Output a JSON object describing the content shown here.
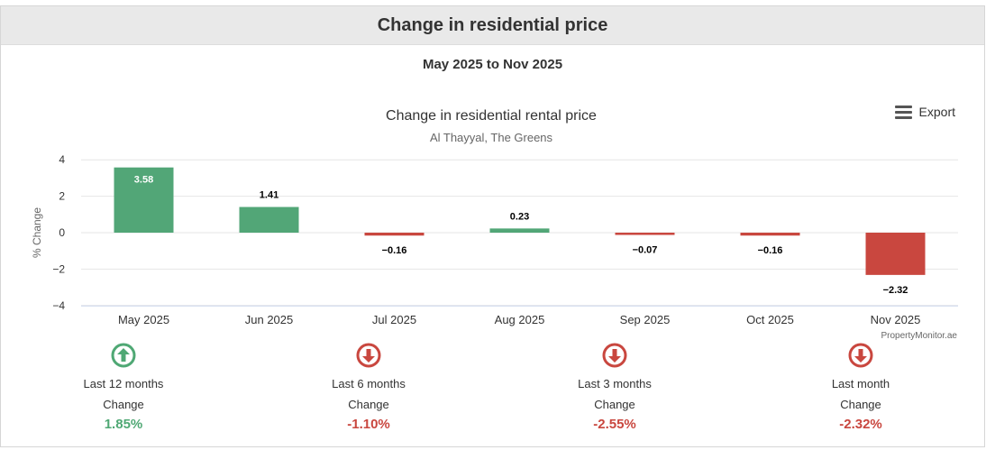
{
  "header": {
    "title": "Change in residential price"
  },
  "date_range": "May 2025 to Nov 2025",
  "export": {
    "label": "Export",
    "icon": "menu-icon"
  },
  "chart_data": {
    "type": "bar",
    "title": "Change in residential rental price",
    "subtitle": "Al Thayyal, The Greens",
    "ylabel": "% Change",
    "xlabel": "",
    "categories": [
      "May 2025",
      "Jun 2025",
      "Jul 2025",
      "Aug 2025",
      "Sep 2025",
      "Oct 2025",
      "Nov 2025"
    ],
    "values": [
      3.58,
      1.41,
      -0.16,
      0.23,
      -0.07,
      -0.16,
      -2.32
    ],
    "value_labels": [
      "3.58",
      "1.41",
      "−0.16",
      "0.23",
      "−0.07",
      "−0.16",
      "−2.32"
    ],
    "yticks": [
      4,
      2,
      0,
      -2,
      -4
    ],
    "ytick_labels": [
      "4",
      "2",
      "0",
      "−2",
      "−4"
    ],
    "ylim": [
      -4,
      4
    ],
    "grid": true,
    "legend": "none",
    "credit": "PropertyMonitor.ae",
    "colors": {
      "positive": "#52a677",
      "negative": "#c9473f"
    }
  },
  "stats": [
    {
      "period": "Last 12 months",
      "label": "Change",
      "value": "1.85%",
      "direction": "up",
      "icon": "arrow-up-circle-icon"
    },
    {
      "period": "Last 6 months",
      "label": "Change",
      "value": "-1.10%",
      "direction": "down",
      "icon": "arrow-down-circle-icon"
    },
    {
      "period": "Last 3 months",
      "label": "Change",
      "value": "-2.55%",
      "direction": "down",
      "icon": "arrow-down-circle-icon"
    },
    {
      "period": "Last month",
      "label": "Change",
      "value": "-2.32%",
      "direction": "down",
      "icon": "arrow-down-circle-icon"
    }
  ],
  "colors": {
    "up": "#4fa874",
    "down": "#c9473f"
  }
}
